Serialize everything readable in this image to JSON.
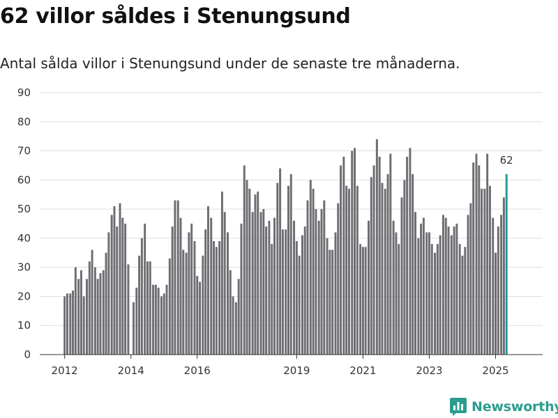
{
  "header": {
    "title": "62 villor såldes i Stenungsund",
    "subtitle": "Antal sålda villor i Stenungsund under de senaste tre månaderna."
  },
  "brand": {
    "name": "Newsworthy"
  },
  "colors": {
    "bar": "#6e6d72",
    "highlight": "#1f9c95",
    "grid": "#dddddd",
    "axis": "#333333",
    "brand": "#2a9d8f"
  },
  "chart_data": {
    "type": "bar",
    "title": "62 villor såldes i Stenungsund",
    "subtitle": "Antal sålda villor i Stenungsund under de senaste tre månaderna.",
    "xlabel": "",
    "ylabel": "",
    "ylim": [
      0,
      90
    ],
    "yticks": [
      0,
      10,
      20,
      30,
      40,
      50,
      60,
      70,
      80,
      90
    ],
    "xlim": [
      2011.25,
      2026.42
    ],
    "x_tick_labels": [
      {
        "value": 2012.0,
        "label": "2012"
      },
      {
        "value": 2014.0,
        "label": "2014"
      },
      {
        "value": 2016.0,
        "label": "2016"
      },
      {
        "value": 2019.0,
        "label": "2019"
      },
      {
        "value": 2021.0,
        "label": "2021"
      },
      {
        "value": 2023.0,
        "label": "2023"
      },
      {
        "value": 2025.0,
        "label": "2025"
      }
    ],
    "grid": true,
    "legend": "none",
    "highlight_label": "62",
    "x": [
      2012.0,
      2012.08,
      2012.17,
      2012.25,
      2012.33,
      2012.42,
      2012.5,
      2012.58,
      2012.67,
      2012.75,
      2012.83,
      2012.92,
      2013.0,
      2013.08,
      2013.17,
      2013.25,
      2013.33,
      2013.42,
      2013.5,
      2013.58,
      2013.67,
      2013.75,
      2013.83,
      2013.92,
      2014.0,
      2014.08,
      2014.17,
      2014.25,
      2014.33,
      2014.42,
      2014.5,
      2014.58,
      2014.67,
      2014.75,
      2014.83,
      2014.92,
      2015.0,
      2015.08,
      2015.17,
      2015.25,
      2015.33,
      2015.42,
      2015.5,
      2015.58,
      2015.67,
      2015.75,
      2015.83,
      2015.92,
      2016.0,
      2016.08,
      2016.17,
      2016.25,
      2016.33,
      2016.42,
      2016.5,
      2016.58,
      2016.67,
      2016.75,
      2016.83,
      2016.92,
      2017.0,
      2017.08,
      2017.17,
      2017.25,
      2017.33,
      2017.42,
      2017.5,
      2017.58,
      2017.67,
      2017.75,
      2017.83,
      2017.92,
      2018.0,
      2018.08,
      2018.17,
      2018.25,
      2018.33,
      2018.42,
      2018.5,
      2018.58,
      2018.67,
      2018.75,
      2018.83,
      2018.92,
      2019.0,
      2019.08,
      2019.17,
      2019.25,
      2019.33,
      2019.42,
      2019.5,
      2019.58,
      2019.67,
      2019.75,
      2019.83,
      2019.92,
      2020.0,
      2020.08,
      2020.17,
      2020.25,
      2020.33,
      2020.42,
      2020.5,
      2020.58,
      2020.67,
      2020.75,
      2020.83,
      2020.92,
      2021.0,
      2021.08,
      2021.17,
      2021.25,
      2021.33,
      2021.42,
      2021.5,
      2021.58,
      2021.67,
      2021.75,
      2021.83,
      2021.92,
      2022.0,
      2022.08,
      2022.17,
      2022.25,
      2022.33,
      2022.42,
      2022.5,
      2022.58,
      2022.67,
      2022.75,
      2022.83,
      2022.92,
      2023.0,
      2023.08,
      2023.17,
      2023.25,
      2023.33,
      2023.42,
      2023.5,
      2023.58,
      2023.67,
      2023.75,
      2023.83,
      2023.92,
      2024.0,
      2024.08,
      2024.17,
      2024.25,
      2024.33,
      2024.42,
      2024.5,
      2024.58,
      2024.67,
      2024.75,
      2024.83,
      2024.92,
      2025.0,
      2025.08,
      2025.17,
      2025.25,
      2025.33
    ],
    "values": [
      20,
      21,
      21,
      22,
      30,
      26,
      29,
      20,
      26,
      32,
      36,
      30,
      26,
      28,
      29,
      35,
      42,
      48,
      51,
      44,
      52,
      47,
      45,
      31,
      null,
      18,
      23,
      34,
      40,
      45,
      32,
      32,
      24,
      24,
      23,
      20,
      21,
      24,
      33,
      44,
      53,
      53,
      47,
      36,
      35,
      42,
      45,
      39,
      27,
      25,
      34,
      43,
      51,
      47,
      39,
      37,
      39,
      56,
      49,
      42,
      29,
      20,
      18,
      26,
      45,
      65,
      60,
      57,
      49,
      55,
      56,
      49,
      50,
      44,
      46,
      38,
      47,
      59,
      64,
      43,
      43,
      58,
      62,
      46,
      39,
      34,
      41,
      44,
      53,
      60,
      57,
      50,
      46,
      50,
      53,
      40,
      36,
      36,
      42,
      52,
      65,
      68,
      58,
      57,
      70,
      71,
      58,
      38,
      37,
      37,
      46,
      61,
      65,
      74,
      68,
      59,
      57,
      62,
      69,
      46,
      42,
      38,
      54,
      60,
      68,
      71,
      62,
      49,
      40,
      45,
      47,
      42,
      42,
      38,
      35,
      38,
      41,
      48,
      47,
      44,
      41,
      44,
      45,
      38,
      34,
      37,
      48,
      52,
      66,
      69,
      65,
      57,
      57,
      69,
      58,
      47,
      35,
      44,
      48,
      54,
      62
    ]
  }
}
